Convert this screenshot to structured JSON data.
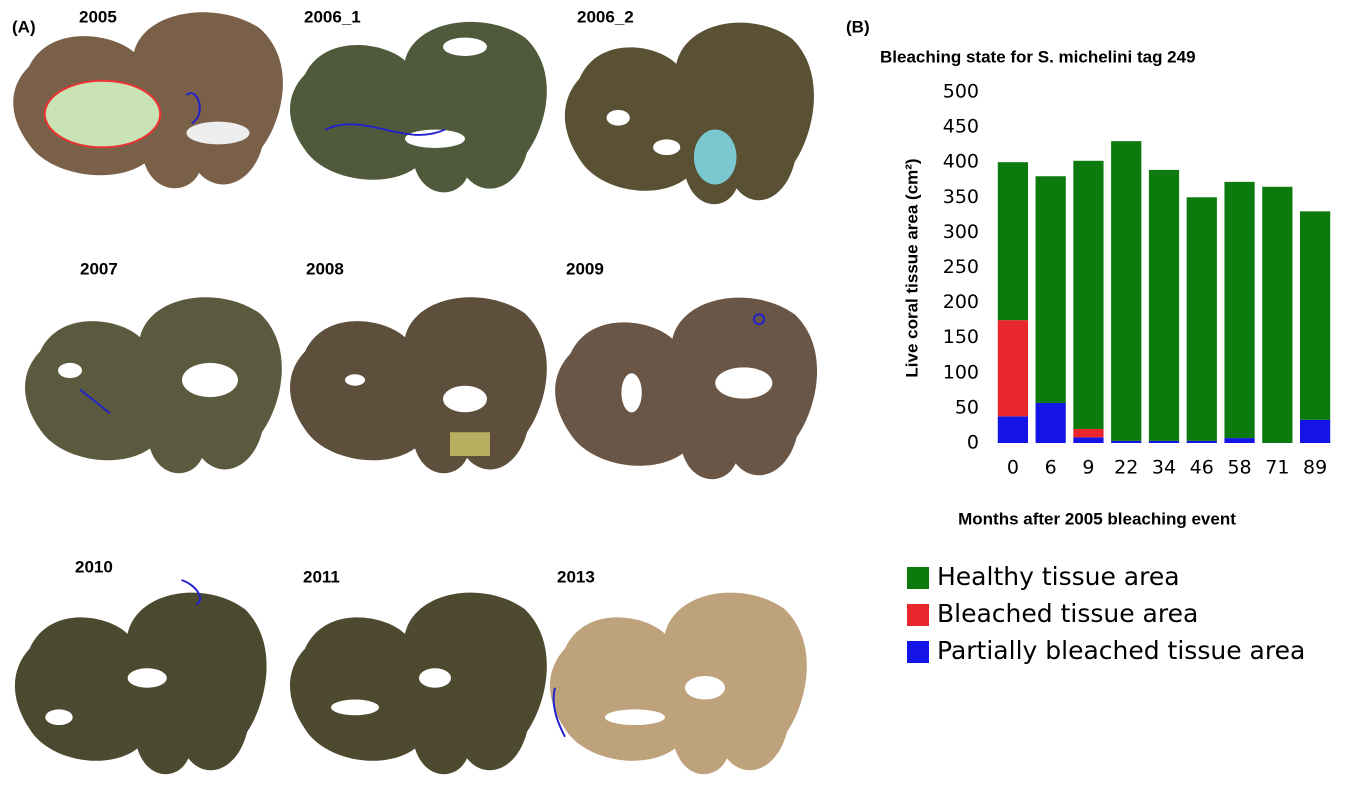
{
  "panel_a": {
    "label": "(A)",
    "images": [
      {
        "label": "2005"
      },
      {
        "label": "2006_1"
      },
      {
        "label": "2006_2"
      },
      {
        "label": "2007"
      },
      {
        "label": "2008"
      },
      {
        "label": "2009"
      },
      {
        "label": "2010"
      },
      {
        "label": "2011"
      },
      {
        "label": "2013"
      }
    ]
  },
  "panel_b": {
    "label": "(B)"
  },
  "chart_data": {
    "type": "stacked_bar",
    "title": "Bleaching state for S. michelini tag 249",
    "x_label": "Months after 2005 bleaching event",
    "y_label": "Live coral tissue area (cm²)",
    "categories": [
      "0",
      "6",
      "9",
      "22",
      "34",
      "46",
      "58",
      "71",
      "89"
    ],
    "series": [
      {
        "name": "Healthy tissue area",
        "color": "#0c7a0c",
        "values": [
          225,
          323,
          382,
          427,
          386,
          347,
          365,
          365,
          297
        ]
      },
      {
        "name": "Bleached tissue area",
        "color": "#e8262b",
        "values": [
          137,
          0,
          12,
          0,
          0,
          0,
          0,
          0,
          0
        ]
      },
      {
        "name": "Partially bleached tissue area",
        "color": "#1414e6",
        "values": [
          38,
          57,
          8,
          3,
          3,
          3,
          7,
          0,
          33
        ]
      }
    ],
    "ylim": [
      0,
      500
    ],
    "yticks": [
      0,
      50,
      100,
      150,
      200,
      250,
      300,
      350,
      400,
      450,
      500
    ],
    "grid": false,
    "legend": "bottom"
  }
}
